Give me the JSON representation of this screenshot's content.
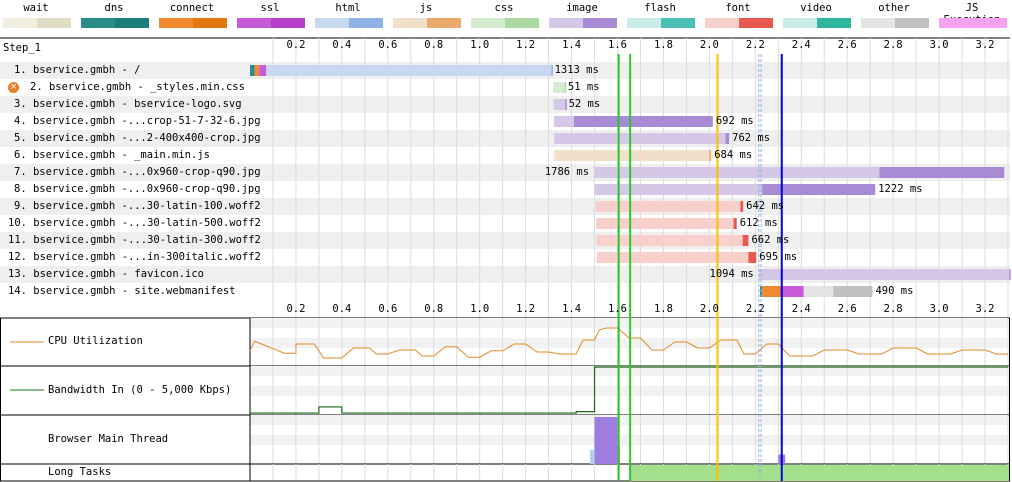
{
  "legend": [
    {
      "label": "wait",
      "colors": [
        "#f3efe0",
        "#e1dcc4"
      ]
    },
    {
      "label": "dns",
      "colors": [
        "#2b8d8a",
        "#1b7e7b"
      ]
    },
    {
      "label": "connect",
      "colors": [
        "#f08a2d",
        "#e37812"
      ]
    },
    {
      "label": "ssl",
      "colors": [
        "#c65ad9",
        "#b63ecb"
      ]
    },
    {
      "label": "html",
      "colors": [
        "#c8d8f0",
        "#8eb2e6"
      ]
    },
    {
      "label": "js",
      "colors": [
        "#f1dfc9",
        "#ebaa6d"
      ]
    },
    {
      "label": "css",
      "colors": [
        "#d5ebd0",
        "#a9d99e"
      ]
    },
    {
      "label": "image",
      "colors": [
        "#d5c8e6",
        "#a98ad5"
      ]
    },
    {
      "label": "flash",
      "colors": [
        "#c9ece8",
        "#4bbfb5"
      ]
    },
    {
      "label": "font",
      "colors": [
        "#f7cfcb",
        "#e85a50"
      ]
    },
    {
      "label": "video",
      "colors": [
        "#c9ede6",
        "#2fb6a0"
      ]
    },
    {
      "label": "other",
      "colors": [
        "#e4e4e4",
        "#c0c0c0"
      ]
    },
    {
      "label": "JS Execution",
      "colors": [
        "#f7a1f2",
        "#f7a1f2"
      ]
    }
  ],
  "step_label": "Step_1",
  "x_axis": {
    "min": 0.0,
    "max": 3.3,
    "ticks": [
      "0.2",
      "0.4",
      "0.6",
      "0.8",
      "1.0",
      "1.2",
      "1.4",
      "1.6",
      "1.8",
      "2.0",
      "2.2",
      "2.4",
      "2.6",
      "2.8",
      "3.0",
      "3.2"
    ]
  },
  "markers": [
    {
      "t": 1.605,
      "color": "#28c828"
    },
    {
      "t": 1.655,
      "color": "#28c828"
    },
    {
      "t": 2.035,
      "color": "#ffc000"
    },
    {
      "t": 2.215,
      "color": "#8fb0d8"
    },
    {
      "t": 2.225,
      "color": "#8fb0d8"
    },
    {
      "t": 2.315,
      "color": "#0000e0"
    }
  ],
  "requests": [
    {
      "label": "1. bservice.gmbh - /",
      "type": "html",
      "start": 0.0,
      "ttfb": 1.312,
      "end": 1.313,
      "pre": [
        [
          "#2b8d8a",
          0.0,
          0.02
        ],
        [
          "#f08a2d",
          0.02,
          0.04
        ],
        [
          "#c65ad9",
          0.04,
          0.07
        ]
      ],
      "dur": "1313 ms",
      "lpos": "right"
    },
    {
      "label": "2. bservice.gmbh - _styles.min.css",
      "type": "css",
      "start": 1.32,
      "ttfb": 1.37,
      "end": 1.371,
      "err": true,
      "dur": "51 ms",
      "lpos": "right"
    },
    {
      "label": "3. bservice.gmbh - bservice-logo.svg",
      "type": "image",
      "start": 1.322,
      "ttfb": 1.373,
      "end": 1.374,
      "dur": "52 ms",
      "lpos": "right"
    },
    {
      "label": "4. bservice.gmbh -...crop-51-7-32-6.jpg",
      "type": "image",
      "start": 1.323,
      "ttfb": 1.41,
      "end": 2.015,
      "dur": "692 ms",
      "lpos": "right"
    },
    {
      "label": "5. bservice.gmbh -...2-400x400-crop.jpg",
      "type": "image",
      "start": 1.324,
      "ttfb": 2.07,
      "end": 2.086,
      "dur": "762 ms",
      "lpos": "right"
    },
    {
      "label": "6. bservice.gmbh - _main.min.js",
      "type": "js",
      "start": 1.324,
      "ttfb": 2.0,
      "end": 2.008,
      "dur": "684 ms",
      "lpos": "right"
    },
    {
      "label": "7. bservice.gmbh -...0x960-crop-q90.jpg",
      "type": "image",
      "start": 1.498,
      "ttfb": 2.74,
      "end": 3.284,
      "dur": "1786 ms",
      "lpos": "left"
    },
    {
      "label": "8. bservice.gmbh -...0x960-crop-q90.jpg",
      "type": "image",
      "start": 1.5,
      "ttfb": 2.23,
      "end": 2.722,
      "dur": "1222 ms",
      "lpos": "right"
    },
    {
      "label": "9. bservice.gmbh -...30-latin-100.woff2",
      "type": "font",
      "start": 1.505,
      "ttfb": 2.135,
      "end": 2.147,
      "dur": "642 ms",
      "lpos": "right"
    },
    {
      "label": "10. bservice.gmbh -...30-latin-500.woff2",
      "type": "font",
      "start": 1.507,
      "ttfb": 2.105,
      "end": 2.119,
      "dur": "612 ms",
      "lpos": "right"
    },
    {
      "label": "11. bservice.gmbh -...30-latin-300.woff2",
      "type": "font",
      "start": 1.508,
      "ttfb": 2.145,
      "end": 2.17,
      "dur": "662 ms",
      "lpos": "right"
    },
    {
      "label": "12. bservice.gmbh -...in-300italic.woff2",
      "type": "font",
      "start": 1.509,
      "ttfb": 2.17,
      "end": 2.204,
      "dur": "695 ms",
      "lpos": "right"
    },
    {
      "label": "13. bservice.gmbh - favicon.ico",
      "type": "image",
      "start": 2.215,
      "ttfb": 3.305,
      "end": 3.309,
      "dur": "1094 ms",
      "lpos": "left"
    },
    {
      "label": "14. bservice.gmbh - site.webmanifest",
      "type": "other",
      "start": 2.22,
      "ttfb": 2.54,
      "end": 2.71,
      "pre": [
        [
          "#2b8d8a",
          2.22,
          2.23
        ],
        [
          "#f08a2d",
          2.23,
          2.31
        ],
        [
          "#c65ad9",
          2.31,
          2.41
        ]
      ],
      "dur": "490 ms",
      "lpos": "right"
    }
  ],
  "panels": {
    "cpu": {
      "label": "CPU Utilization"
    },
    "bandwidth": {
      "label": "Bandwidth In (0 - 5,000 Kbps)"
    },
    "main_thread": {
      "label": "Browser Main Thread"
    },
    "long_tasks": {
      "label": "Long Tasks"
    }
  },
  "cpu_series": [
    [
      0.0,
      0.28
    ],
    [
      0.02,
      0.52
    ],
    [
      0.15,
      0.22
    ],
    [
      0.2,
      0.22
    ],
    [
      0.2,
      0.45
    ],
    [
      0.28,
      0.45
    ],
    [
      0.32,
      0.1
    ],
    [
      0.4,
      0.1
    ],
    [
      0.45,
      0.35
    ],
    [
      0.52,
      0.35
    ],
    [
      0.55,
      0.2
    ],
    [
      0.6,
      0.2
    ],
    [
      0.65,
      0.3
    ],
    [
      0.72,
      0.3
    ],
    [
      0.75,
      0.15
    ],
    [
      0.8,
      0.15
    ],
    [
      0.85,
      0.38
    ],
    [
      0.9,
      0.38
    ],
    [
      0.95,
      0.12
    ],
    [
      1.0,
      0.12
    ],
    [
      1.05,
      0.28
    ],
    [
      1.1,
      0.28
    ],
    [
      1.15,
      0.45
    ],
    [
      1.2,
      0.45
    ],
    [
      1.25,
      0.25
    ],
    [
      1.3,
      0.25
    ],
    [
      1.35,
      0.2
    ],
    [
      1.42,
      0.2
    ],
    [
      1.45,
      0.55
    ],
    [
      1.5,
      0.55
    ],
    [
      1.52,
      0.8
    ],
    [
      1.55,
      0.85
    ],
    [
      1.6,
      0.85
    ],
    [
      1.65,
      0.6
    ],
    [
      1.7,
      0.6
    ],
    [
      1.75,
      0.3
    ],
    [
      1.8,
      0.3
    ],
    [
      1.85,
      0.5
    ],
    [
      1.9,
      0.5
    ],
    [
      1.95,
      0.35
    ],
    [
      2.0,
      0.35
    ],
    [
      2.05,
      0.55
    ],
    [
      2.12,
      0.55
    ],
    [
      2.15,
      0.2
    ],
    [
      2.2,
      0.2
    ],
    [
      2.25,
      0.45
    ],
    [
      2.3,
      0.45
    ],
    [
      2.35,
      0.15
    ],
    [
      2.45,
      0.15
    ],
    [
      2.5,
      0.3
    ],
    [
      2.6,
      0.3
    ],
    [
      2.65,
      0.2
    ],
    [
      2.75,
      0.2
    ],
    [
      2.8,
      0.35
    ],
    [
      2.9,
      0.35
    ],
    [
      2.95,
      0.2
    ],
    [
      3.05,
      0.2
    ],
    [
      3.1,
      0.3
    ],
    [
      3.2,
      0.3
    ],
    [
      3.25,
      0.2
    ],
    [
      3.3,
      0.2
    ]
  ],
  "bw_series": [
    [
      0.0,
      0.02
    ],
    [
      0.3,
      0.02
    ],
    [
      0.3,
      0.15
    ],
    [
      0.4,
      0.15
    ],
    [
      0.4,
      0.02
    ],
    [
      1.42,
      0.02
    ],
    [
      1.42,
      0.05
    ],
    [
      1.5,
      0.05
    ],
    [
      1.5,
      1.0
    ],
    [
      3.3,
      1.0
    ]
  ],
  "main_thread_blocks": [
    [
      1.48,
      1.5,
      0.3,
      "#b3d0ef"
    ],
    [
      1.5,
      1.6,
      1.0,
      "#9d7ee0"
    ],
    [
      1.6,
      1.61,
      0.4,
      "#9d7ee0"
    ],
    [
      2.3,
      2.33,
      0.2,
      "#9d7ee0"
    ]
  ],
  "long_task_start": 1.655
}
